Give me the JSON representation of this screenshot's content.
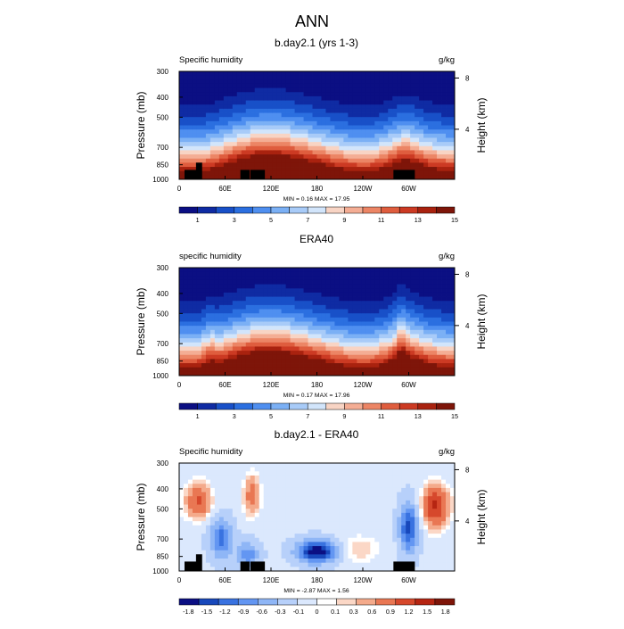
{
  "page": {
    "title": "ANN"
  },
  "colors": {
    "palette_15": [
      "#0b0f83",
      "#0f2ba3",
      "#1850c8",
      "#2b6fe0",
      "#4f8ff0",
      "#7bb0f5",
      "#a8cbf8",
      "#d2e5fb",
      "#f8d4c4",
      "#f4ad94",
      "#ec8565",
      "#df5d3e",
      "#cc3a23",
      "#a9220f",
      "#7e1509"
    ],
    "palette_diff": [
      "#0b0f83",
      "#1848bb",
      "#3972e0",
      "#6396f2",
      "#8fb6f6",
      "#b7d0fa",
      "#dbe8fd",
      "#ffffff",
      "#fbd7c6",
      "#f4aa8b",
      "#e97753",
      "#d6482c",
      "#b62512",
      "#7e1509"
    ],
    "terrain": "#000000",
    "frame": "#000000"
  },
  "panels": [
    {
      "title": "b.day2.1 (yrs 1-3)",
      "left_string": "Specific humidity",
      "right_string": "g/kg",
      "minmax": "MIN =   0.16  MAX =  17.95",
      "colorbar_labels": [
        "1",
        "3",
        "5",
        "7",
        "9",
        "11",
        "13",
        "15"
      ]
    },
    {
      "title": "ERA40",
      "left_string": "specific humidity",
      "right_string": "g/kg",
      "minmax": "MIN =   0.17  MAX =  17.96",
      "colorbar_labels": [
        "1",
        "3",
        "5",
        "7",
        "9",
        "11",
        "13",
        "15"
      ]
    },
    {
      "title": "b.day2.1 - ERA40",
      "left_string": "Specific humidity",
      "right_string": "g/kg",
      "minmax": "MIN =  -2.87  MAX =   1.56",
      "colorbar_labels": [
        "-1.8",
        "-1.5",
        "-1.2",
        "-0.9",
        "-0.6",
        "-0.3",
        "-0.1",
        "0",
        "0.1",
        "0.3",
        "0.6",
        "0.9",
        "1.2",
        "1.5",
        "1.8"
      ]
    }
  ],
  "axes": {
    "ylabel": "Pressure (mb)",
    "ylabel_right": "Height (km)",
    "y_ticks": [
      "300",
      "400",
      "500",
      "700",
      "850",
      "1000"
    ],
    "x_ticks": [
      "0",
      "60E",
      "120E",
      "180",
      "120W",
      "60W"
    ],
    "right_ticks": [
      "8",
      "4"
    ]
  },
  "chart_data": [
    {
      "type": "heatmap",
      "title": "b.day2.1 (yrs 1-3)",
      "subtitle": "Specific humidity",
      "units": "g/kg",
      "ylabel": "Pressure (mb)",
      "ylabel_right": "Height (km)",
      "x": [
        0,
        60,
        120,
        180,
        240,
        300
      ],
      "x_tick_labels": [
        "0",
        "60E",
        "120E",
        "180",
        "120W",
        "60W"
      ],
      "xlim": [
        0,
        360
      ],
      "y_pressure": [
        300,
        400,
        500,
        700,
        850,
        1000
      ],
      "ylim": [
        1000,
        300
      ],
      "y_right_km": [
        8,
        4
      ],
      "levels": [
        1,
        2,
        3,
        4,
        5,
        6,
        7,
        8,
        9,
        10,
        11,
        12,
        13,
        14,
        15
      ],
      "min": 0.16,
      "max": 17.95
    },
    {
      "type": "heatmap",
      "title": "ERA40",
      "subtitle": "specific humidity",
      "units": "g/kg",
      "ylabel": "Pressure (mb)",
      "ylabel_right": "Height (km)",
      "x": [
        0,
        60,
        120,
        180,
        240,
        300
      ],
      "x_tick_labels": [
        "0",
        "60E",
        "120E",
        "180",
        "120W",
        "60W"
      ],
      "xlim": [
        0,
        360
      ],
      "y_pressure": [
        300,
        400,
        500,
        700,
        850,
        1000
      ],
      "ylim": [
        1000,
        300
      ],
      "y_right_km": [
        8,
        4
      ],
      "levels": [
        1,
        2,
        3,
        4,
        5,
        6,
        7,
        8,
        9,
        10,
        11,
        12,
        13,
        14,
        15
      ],
      "min": 0.17,
      "max": 17.96
    },
    {
      "type": "heatmap",
      "title": "b.day2.1 - ERA40",
      "subtitle": "Specific humidity",
      "units": "g/kg",
      "ylabel": "Pressure (mb)",
      "ylabel_right": "Height (km)",
      "x": [
        0,
        60,
        120,
        180,
        240,
        300
      ],
      "x_tick_labels": [
        "0",
        "60E",
        "120E",
        "180",
        "120W",
        "60W"
      ],
      "xlim": [
        0,
        360
      ],
      "y_pressure": [
        300,
        400,
        500,
        700,
        850,
        1000
      ],
      "ylim": [
        1000,
        300
      ],
      "y_right_km": [
        8,
        4
      ],
      "levels": [
        -1.8,
        -1.5,
        -1.2,
        -0.9,
        -0.6,
        -0.3,
        -0.1,
        0,
        0.1,
        0.3,
        0.6,
        0.9,
        1.2,
        1.5,
        1.8
      ],
      "min": -2.87,
      "max": 1.56
    }
  ]
}
